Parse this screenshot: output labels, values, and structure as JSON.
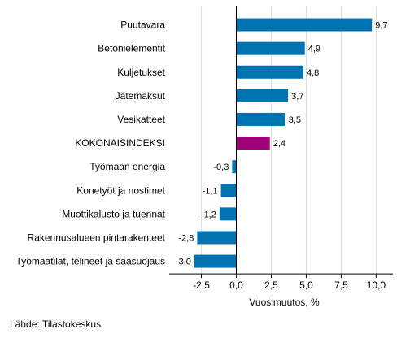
{
  "chart_data": {
    "type": "bar",
    "orientation": "horizontal",
    "categories": [
      "Puutavara",
      "Betonielementit",
      "Kuljetukset",
      "Jätemaksut",
      "Vesikatteet",
      "KOKONAISINDEKSI",
      "Työmaan energia",
      "Konetyöt ja nostimet",
      "Muottikalusto ja tuennat",
      "Rakennusalueen pintarakenteet",
      "Työmaatilat, telineet ja sääsuojaus"
    ],
    "values": [
      9.7,
      4.9,
      4.8,
      3.7,
      3.5,
      2.4,
      -0.3,
      -1.1,
      -1.2,
      -2.8,
      -3.0
    ],
    "value_labels": [
      "9,7",
      "4,9",
      "4,8",
      "3,7",
      "3,5",
      "2,4",
      "-0,3",
      "-1,1",
      "-1,2",
      "-2,8",
      "-3,0"
    ],
    "highlight_index": 5,
    "xlabel": "Vuosimuutos, %",
    "xlim": [
      -4.8,
      11.2
    ],
    "xticks": [
      -2.5,
      0.0,
      2.5,
      5.0,
      7.5,
      10.0
    ],
    "xtick_labels": [
      "-2,5",
      "0,0",
      "2,5",
      "5,0",
      "7,5",
      "10,0"
    ],
    "grid": "vertical",
    "colors": {
      "bar": "#0073b0",
      "highlight": "#a0007a",
      "grid": "#dddddd",
      "axis": "#000000"
    }
  },
  "source": "Lähde: Tilastokeskus"
}
